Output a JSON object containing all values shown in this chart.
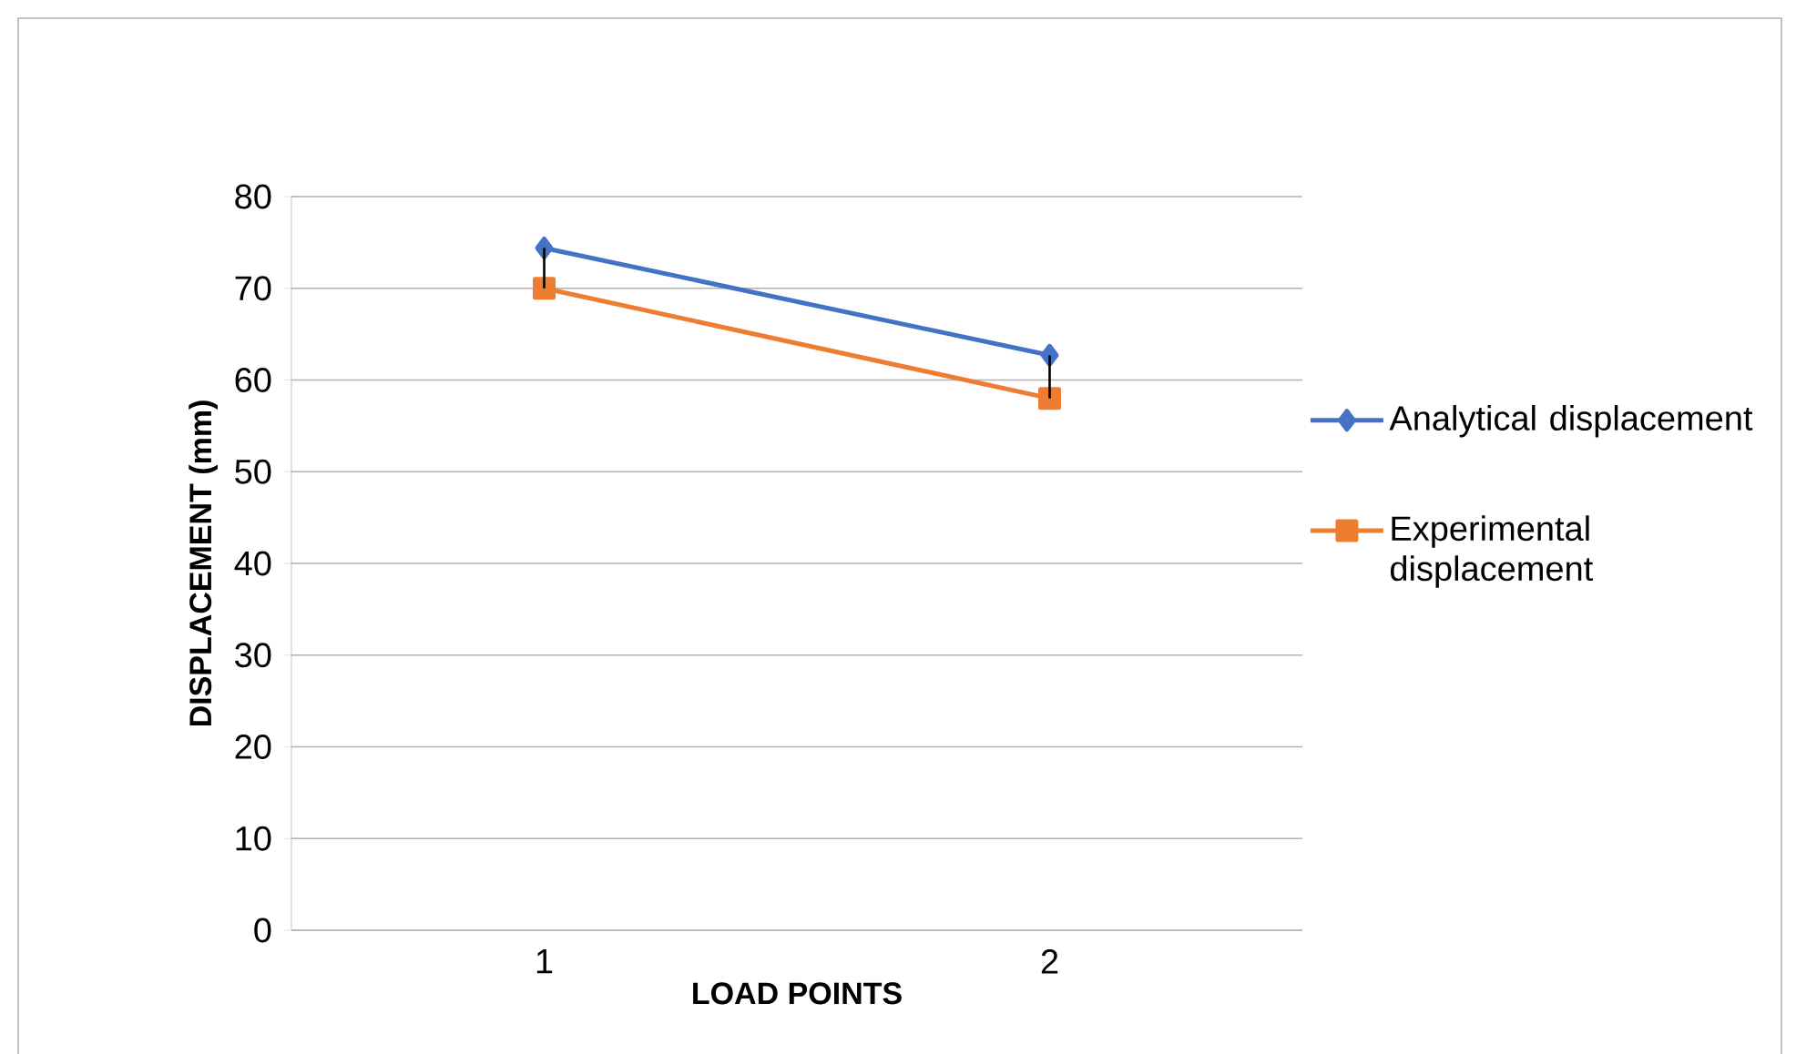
{
  "chart_data": {
    "type": "line",
    "xlabel": "LOAD POINTS",
    "ylabel": "DISPLACEMENT (mm)",
    "categories": [
      "1",
      "2"
    ],
    "series": [
      {
        "name": "Analytical displacement",
        "color": "#4472c4",
        "values": [
          74.4,
          62.7
        ],
        "marker": "diamond",
        "errors": [
          [
            70,
            74.4
          ],
          [
            58,
            62.7
          ]
        ]
      },
      {
        "name": "Experimental displacement",
        "color": "#ed7d31",
        "values": [
          70,
          58
        ],
        "marker": "square"
      }
    ],
    "ylim": [
      0,
      80
    ],
    "yticks": [
      0,
      10,
      20,
      30,
      40,
      50,
      60,
      70,
      80
    ],
    "grid": "y",
    "legend": "right",
    "line_style": "solid"
  }
}
